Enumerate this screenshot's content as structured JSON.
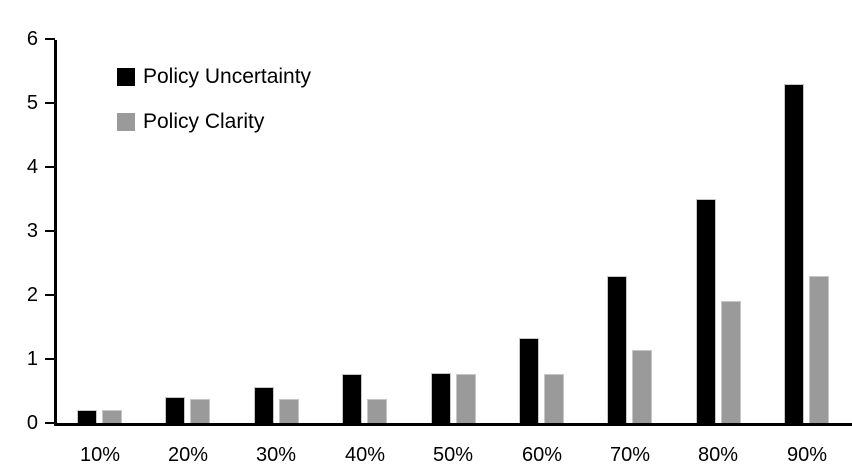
{
  "chart_data": {
    "type": "bar",
    "title": "",
    "categories": [
      "10%",
      "20%",
      "30%",
      "40%",
      "50%",
      "60%",
      "70%",
      "80%",
      "90%"
    ],
    "series": [
      {
        "name": "Policy Uncertainty",
        "color": "#000000",
        "values": [
          0.2,
          0.4,
          0.57,
          0.77,
          0.78,
          1.33,
          2.3,
          3.5,
          5.3
        ]
      },
      {
        "name": "Policy Clarity",
        "color": "#9a9a9a",
        "values": [
          0.2,
          0.38,
          0.38,
          0.38,
          0.77,
          0.77,
          1.14,
          1.9,
          2.3
        ]
      }
    ],
    "xlabel": "",
    "ylabel": "",
    "ylim": [
      0,
      6
    ],
    "yticks": [
      0,
      1,
      2,
      3,
      4,
      5,
      6
    ],
    "grid": false,
    "legend_position": "top-left-inside",
    "axis_color": "#000000",
    "background_color": "#ffffff"
  }
}
